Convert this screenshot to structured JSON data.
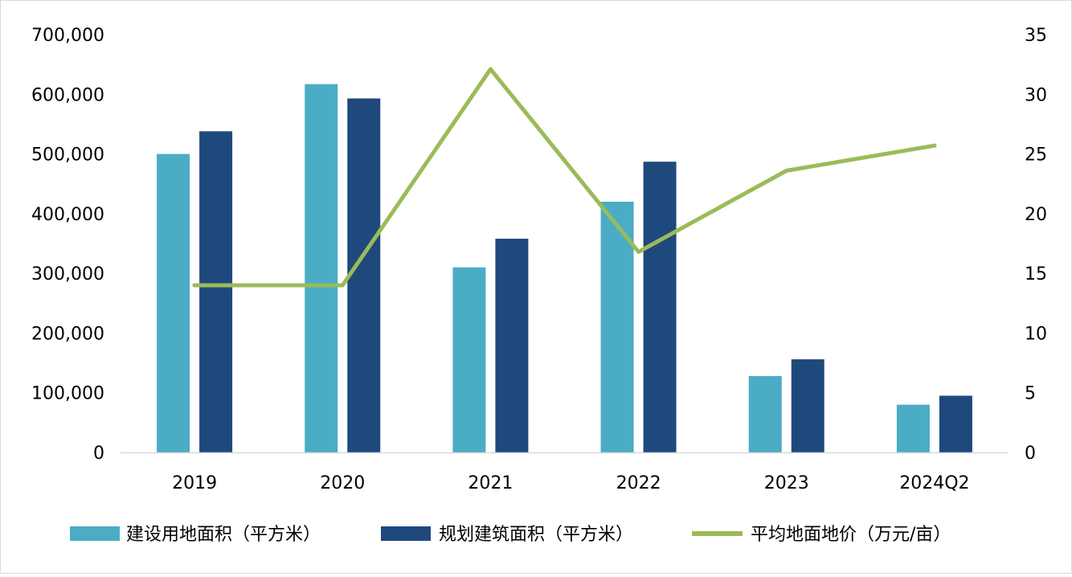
{
  "chart_data": {
    "type": "bar",
    "categories": [
      "2019",
      "2020",
      "2021",
      "2022",
      "2023",
      "2024Q2"
    ],
    "series": [
      {
        "name": "建设用地面积（平方米）",
        "type": "bar",
        "axis": "left",
        "color": "#4BACC6",
        "values": [
          500000,
          617000,
          310000,
          420000,
          128000,
          80000
        ]
      },
      {
        "name": "规划建筑面积（平方米）",
        "type": "bar",
        "axis": "left",
        "color": "#1F497D",
        "values": [
          538000,
          593000,
          358000,
          487000,
          156000,
          95000
        ]
      },
      {
        "name": "平均地面地价（万元/亩）",
        "type": "line",
        "axis": "right",
        "color": "#9BBB59",
        "values": [
          14.0,
          14.0,
          32.1,
          16.8,
          23.6,
          25.7
        ]
      }
    ],
    "y_left": {
      "ylim": [
        0,
        700000
      ],
      "ticks": [
        "0",
        "100,000",
        "200,000",
        "300,000",
        "400,000",
        "500,000",
        "600,000",
        "700,000"
      ]
    },
    "y_right": {
      "ylim": [
        0,
        35
      ],
      "ticks": [
        "0",
        "5",
        "10",
        "15",
        "20",
        "25",
        "30",
        "35"
      ]
    },
    "legend_position": "bottom",
    "grid": false
  }
}
